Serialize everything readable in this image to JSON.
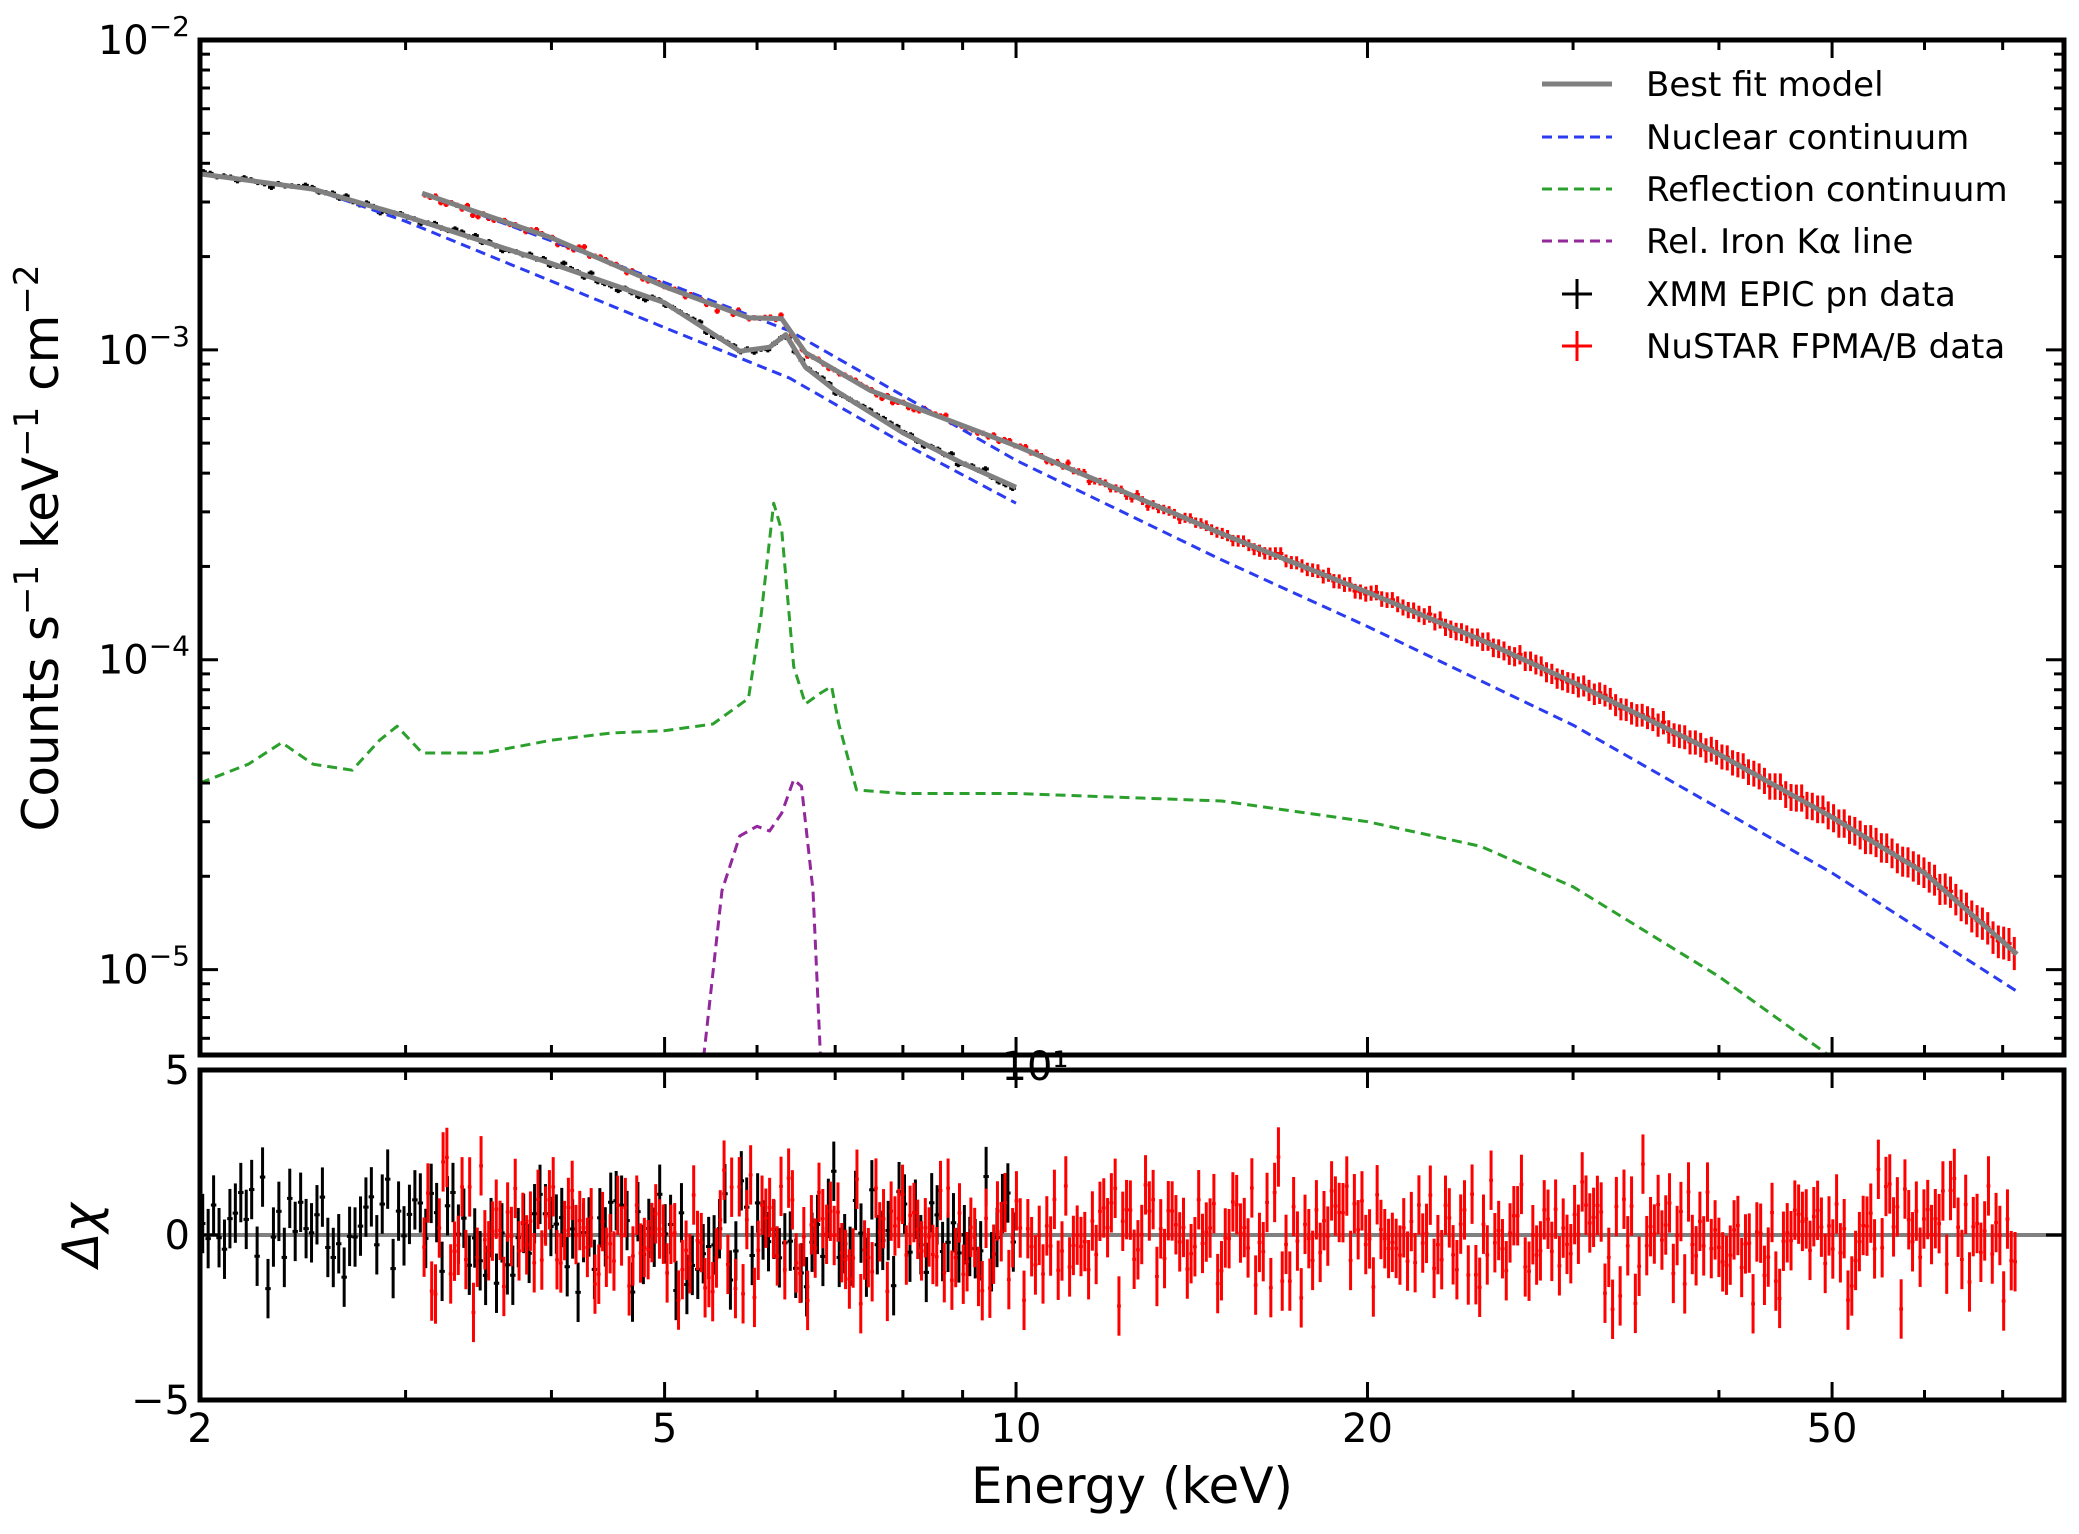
{
  "chart_data": [
    {
      "panel": "spectrum",
      "type": "line",
      "x_scale": "log",
      "y_scale": "log",
      "xlim": [
        2.0,
        79.0
      ],
      "ylim": [
        5.3e-06,
        0.01
      ],
      "ylabel_parts": [
        "Counts s",
        "−1",
        " keV",
        "−1",
        " cm",
        "−2"
      ],
      "y_ticks": [
        {
          "value": 0.01,
          "base": "10",
          "exp": "−2"
        },
        {
          "value": 0.001,
          "base": "10",
          "exp": "−3"
        },
        {
          "value": 0.0001,
          "base": "10",
          "exp": "−4"
        },
        {
          "value": 1e-05,
          "base": "10",
          "exp": "−5"
        }
      ],
      "stray_label": "10¹",
      "legend_position": "top-right",
      "legend": [
        {
          "label": "Best fit model",
          "style": "solid",
          "color": "#808080"
        },
        {
          "label": "Nuclear continuum",
          "style": "dashed",
          "color": "#2b3bf0"
        },
        {
          "label": "Reflection continuum",
          "style": "dashed",
          "color": "#2ca02c"
        },
        {
          "label": "Rel. Iron Kα line",
          "style": "dashed",
          "color": "#93279c"
        },
        {
          "label": "XMM EPIC pn data",
          "style": "cross",
          "color": "#000000"
        },
        {
          "label": "NuSTAR FPMA/B data",
          "style": "cross",
          "color": "#ff0000"
        }
      ],
      "series": [
        {
          "name": "Best fit model",
          "color": "#808080",
          "style": "solid",
          "x": [
            2.0,
            2.5,
            3.0,
            4.0,
            5.0,
            5.8,
            6.15,
            6.35,
            6.6,
            7.0,
            8.0,
            9.0,
            10.0
          ],
          "y": [
            0.0037,
            0.0033,
            0.0027,
            0.0019,
            0.00142,
            0.00099,
            0.00102,
            0.00112,
            0.00088,
            0.00074,
            0.00054,
            0.00043,
            0.00036
          ]
        },
        {
          "name": "Best fit model",
          "color": "#808080",
          "style": "solid",
          "x": [
            3.1,
            4.0,
            5.0,
            5.9,
            6.3,
            6.6,
            7.5,
            10.0,
            15.0,
            20.0,
            25.0,
            30.0,
            40.0,
            50.0,
            60.0,
            72.0
          ],
          "y": [
            0.0032,
            0.0023,
            0.0016,
            0.00127,
            0.00126,
            0.00098,
            0.00074,
            0.00049,
            0.000255,
            0.000165,
            0.000116,
            8.45e-05,
            4.95e-05,
            3.1e-05,
            2.05e-05,
            1.12e-05
          ]
        },
        {
          "name": "Nuclear continuum",
          "color": "#2b3bf0",
          "style": "dashed",
          "x": [
            2.0,
            2.5,
            3.0,
            5.0,
            6.4,
            8.0,
            10.0
          ],
          "y": [
            0.0037,
            0.0033,
            0.0026,
            0.00118,
            0.00081,
            0.0005,
            0.00032
          ]
        },
        {
          "name": "Nuclear continuum",
          "color": "#2b3bf0",
          "style": "dashed",
          "x": [
            3.1,
            5.0,
            6.4,
            10.0,
            15.0,
            20.0,
            30.0,
            50.0,
            72.0
          ],
          "y": [
            0.0032,
            0.00165,
            0.00115,
            0.00044,
            0.00021,
            0.000128,
            6.15e-05,
            2.05e-05,
            8.5e-06
          ]
        },
        {
          "name": "Reflection continuum",
          "color": "#2ca02c",
          "style": "dashed",
          "x": [
            2.0,
            2.2,
            2.35,
            2.5,
            2.7,
            2.85,
            2.95,
            3.1,
            3.5,
            4.0,
            4.5,
            5.0,
            5.5,
            5.9,
            6.05,
            6.2,
            6.3,
            6.45,
            6.6,
            6.8,
            6.95,
            7.05,
            7.3,
            8.0,
            10.0,
            15.0,
            20.0,
            25.0,
            30.0,
            40.0,
            50.0
          ],
          "y": [
            4e-05,
            4.6e-05,
            5.4e-05,
            4.6e-05,
            4.4e-05,
            5.5e-05,
            6.1e-05,
            5e-05,
            5e-05,
            5.5e-05,
            5.8e-05,
            5.9e-05,
            6.2e-05,
            7.5e-05,
            0.00014,
            0.00032,
            0.00026,
            9.5e-05,
            7.2e-05,
            7.8e-05,
            8.2e-05,
            6.2e-05,
            3.8e-05,
            3.7e-05,
            3.7e-05,
            3.5e-05,
            3e-05,
            2.5e-05,
            1.85e-05,
            9.5e-06,
            5.2e-06
          ]
        },
        {
          "name": "Rel. Iron Kα line",
          "color": "#93279c",
          "style": "dashed",
          "x": [
            5.4,
            5.6,
            5.8,
            6.0,
            6.15,
            6.3,
            6.45,
            6.55,
            6.7,
            6.8
          ],
          "y": [
            5.2e-06,
            1.8e-05,
            2.7e-05,
            2.9e-05,
            2.8e-05,
            3.2e-05,
            4.1e-05,
            3.9e-05,
            1.8e-05,
            5.2e-06
          ]
        },
        {
          "name": "XMM EPIC pn data",
          "color": "#000000",
          "style": "cross",
          "x_range": [
            2.0,
            10.0
          ],
          "points": 120
        },
        {
          "name": "NuSTAR FPMA/B data",
          "color": "#ff0000",
          "style": "cross",
          "x_range": [
            3.1,
            72.0
          ],
          "points": 300
        }
      ]
    },
    {
      "panel": "residuals",
      "type": "scatter",
      "x_scale": "log",
      "xlim": [
        2.0,
        79.0
      ],
      "ylim": [
        -5,
        5
      ],
      "ylabel": "Δχ",
      "xlabel": "Energy (keV)",
      "x_ticks": [
        {
          "value": 2,
          "label": "2"
        },
        {
          "value": 5,
          "label": "5"
        },
        {
          "value": 10,
          "label": "10"
        },
        {
          "value": 20,
          "label": "20"
        },
        {
          "value": 50,
          "label": "50"
        }
      ],
      "y_ticks": [
        {
          "value": 5,
          "label": "5"
        },
        {
          "value": 0,
          "label": "0"
        },
        {
          "value": -5,
          "label": "−5"
        }
      ],
      "zero_line_color": "#808080",
      "series": [
        {
          "name": "XMM EPIC pn data",
          "color": "#000000",
          "x_range": [
            2.0,
            10.0
          ],
          "points": 150,
          "spread": 1.3
        },
        {
          "name": "NuSTAR FPMA/B data",
          "color": "#ff0000",
          "x_range": [
            3.1,
            72.0
          ],
          "points": 420,
          "spread": 1.3
        }
      ]
    }
  ],
  "colors": {
    "model": "#808080",
    "nuclear": "#2b3bf0",
    "reflection": "#2ca02c",
    "iron": "#93279c",
    "xmm": "#000000",
    "nustar": "#ff0000"
  }
}
